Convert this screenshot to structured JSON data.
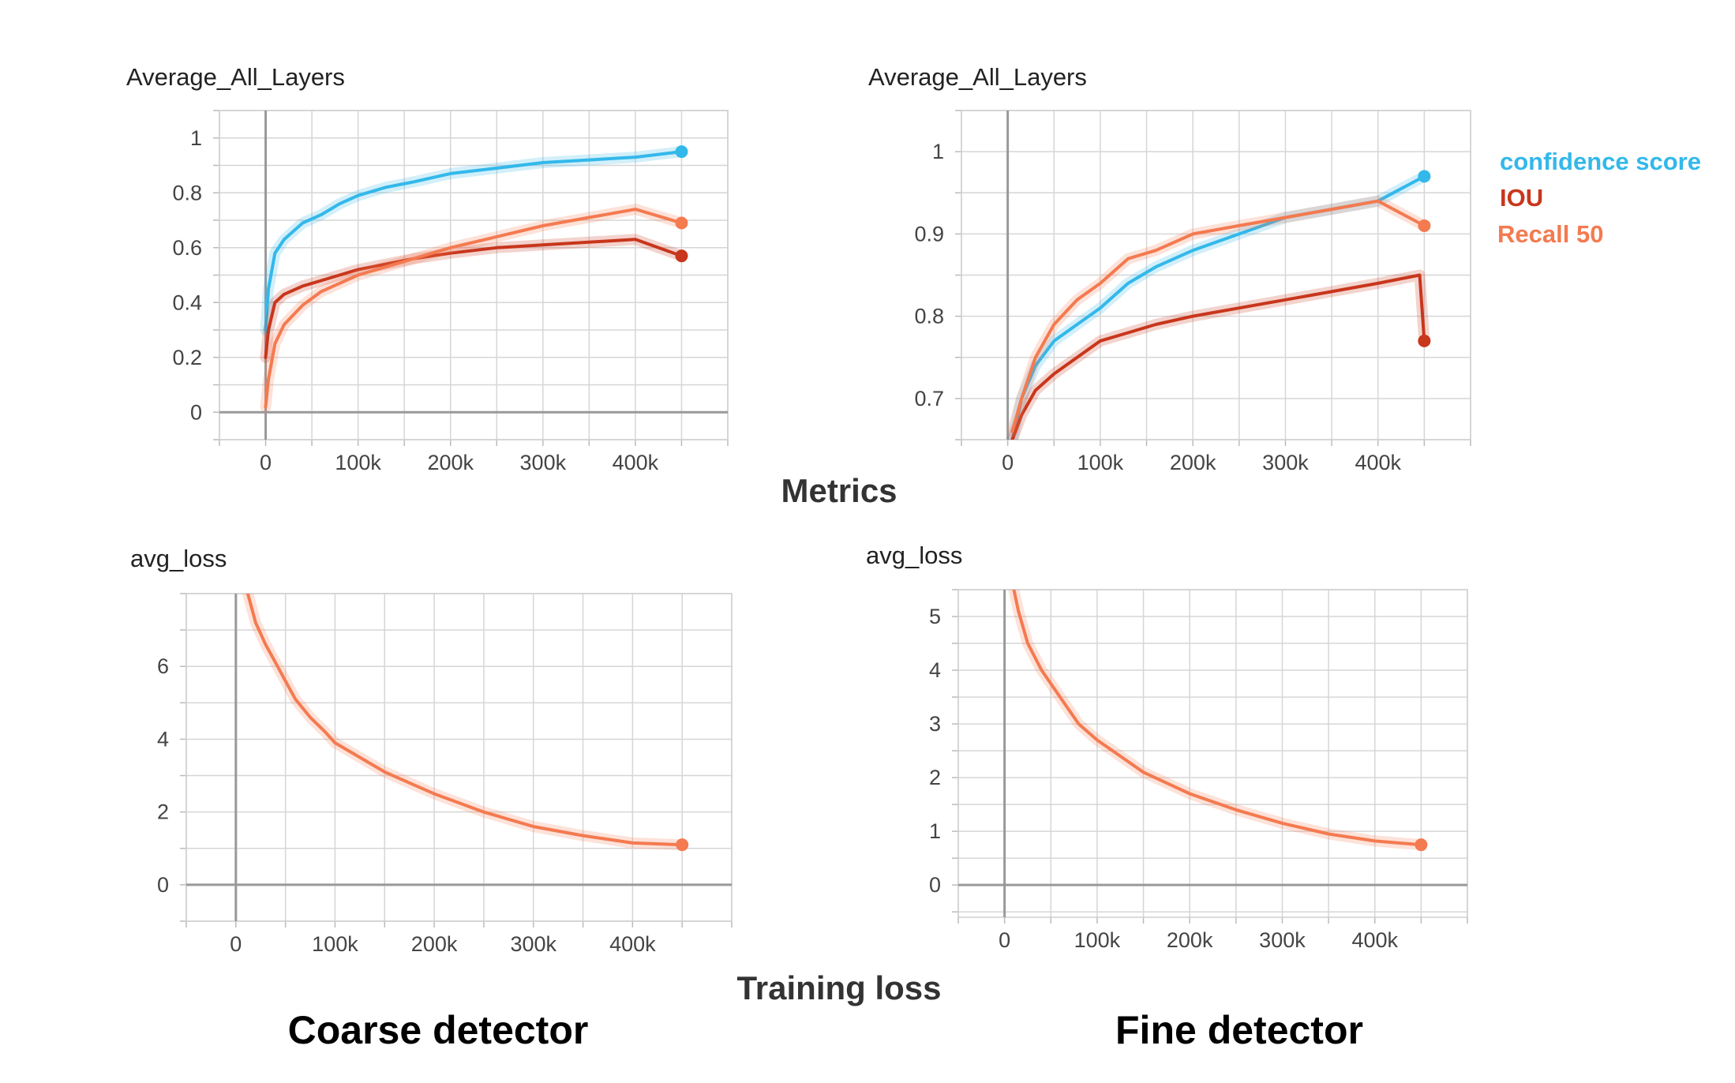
{
  "section_labels": {
    "metrics": "Metrics",
    "training_loss": "Training loss"
  },
  "detector_labels": {
    "coarse": "Coarse detector",
    "fine": "Fine detector"
  },
  "legend": [
    {
      "label": "confidence score",
      "color": "#33b8ea"
    },
    {
      "label": "IOU",
      "color": "#c8361c"
    },
    {
      "label": "Recall 50",
      "color": "#f47a50"
    }
  ],
  "chart_data": [
    {
      "id": "coarse-metrics",
      "type": "line",
      "title": "Average_All_Layers",
      "xlim": [
        -50000,
        500000
      ],
      "ylim": [
        -0.1,
        1.1
      ],
      "xticks": [
        0,
        100000,
        200000,
        300000,
        400000
      ],
      "xtick_labels": [
        "0",
        "100k",
        "200k",
        "300k",
        "400k"
      ],
      "yticks": [
        0,
        0.2,
        0.4,
        0.6,
        0.8,
        1
      ],
      "ytick_labels": [
        "0",
        "0.2",
        "0.4",
        "0.6",
        "0.8",
        "1"
      ],
      "series": [
        {
          "name": "confidence score",
          "color": "#33b8ea",
          "x": [
            0,
            3000,
            10000,
            20000,
            40000,
            60000,
            80000,
            100000,
            130000,
            160000,
            200000,
            250000,
            300000,
            350000,
            400000,
            450000
          ],
          "y": [
            0.3,
            0.45,
            0.58,
            0.63,
            0.69,
            0.72,
            0.76,
            0.79,
            0.82,
            0.84,
            0.87,
            0.89,
            0.91,
            0.92,
            0.93,
            0.95
          ]
        },
        {
          "name": "IOU",
          "color": "#c8361c",
          "x": [
            0,
            3000,
            10000,
            20000,
            40000,
            60000,
            80000,
            100000,
            130000,
            160000,
            200000,
            250000,
            300000,
            350000,
            400000,
            450000
          ],
          "y": [
            0.2,
            0.3,
            0.4,
            0.43,
            0.46,
            0.48,
            0.5,
            0.52,
            0.54,
            0.56,
            0.58,
            0.6,
            0.61,
            0.62,
            0.63,
            0.57
          ]
        },
        {
          "name": "Recall 50",
          "color": "#f47a50",
          "x": [
            0,
            3000,
            10000,
            20000,
            40000,
            60000,
            80000,
            100000,
            130000,
            160000,
            200000,
            250000,
            300000,
            350000,
            400000,
            450000
          ],
          "y": [
            0.02,
            0.12,
            0.25,
            0.32,
            0.39,
            0.44,
            0.47,
            0.5,
            0.53,
            0.56,
            0.6,
            0.64,
            0.68,
            0.71,
            0.74,
            0.69
          ]
        }
      ]
    },
    {
      "id": "fine-metrics",
      "type": "line",
      "title": "Average_All_Layers",
      "xlim": [
        -50000,
        500000
      ],
      "ylim": [
        0.65,
        1.05
      ],
      "xticks": [
        0,
        100000,
        200000,
        300000,
        400000
      ],
      "xtick_labels": [
        "0",
        "100k",
        "200k",
        "300k",
        "400k"
      ],
      "yticks": [
        0.7,
        0.8,
        0.9,
        1
      ],
      "ytick_labels": [
        "0.7",
        "0.8",
        "0.9",
        "1"
      ],
      "series": [
        {
          "name": "confidence score",
          "color": "#33b8ea",
          "x": [
            5000,
            15000,
            30000,
            50000,
            75000,
            100000,
            130000,
            160000,
            200000,
            250000,
            300000,
            350000,
            400000,
            450000
          ],
          "y": [
            0.65,
            0.7,
            0.74,
            0.77,
            0.79,
            0.81,
            0.84,
            0.86,
            0.88,
            0.9,
            0.92,
            0.93,
            0.94,
            0.97
          ]
        },
        {
          "name": "IOU",
          "color": "#c8361c",
          "x": [
            5000,
            15000,
            30000,
            50000,
            75000,
            100000,
            130000,
            160000,
            200000,
            250000,
            300000,
            350000,
            400000,
            445000,
            450000
          ],
          "y": [
            0.65,
            0.68,
            0.71,
            0.73,
            0.75,
            0.77,
            0.78,
            0.79,
            0.8,
            0.81,
            0.82,
            0.83,
            0.84,
            0.85,
            0.77
          ]
        },
        {
          "name": "Recall 50",
          "color": "#f47a50",
          "x": [
            5000,
            15000,
            30000,
            50000,
            75000,
            100000,
            130000,
            160000,
            200000,
            250000,
            300000,
            350000,
            400000,
            450000
          ],
          "y": [
            0.66,
            0.7,
            0.75,
            0.79,
            0.82,
            0.84,
            0.87,
            0.88,
            0.9,
            0.91,
            0.92,
            0.93,
            0.94,
            0.91
          ]
        }
      ]
    },
    {
      "id": "coarse-loss",
      "type": "line",
      "title": "avg_loss",
      "xlim": [
        -50000,
        500000
      ],
      "ylim": [
        -1,
        8
      ],
      "xticks": [
        0,
        100000,
        200000,
        300000,
        400000
      ],
      "xtick_labels": [
        "0",
        "100k",
        "200k",
        "300k",
        "400k"
      ],
      "yticks": [
        0,
        2,
        4,
        6
      ],
      "ytick_labels": [
        "0",
        "2",
        "4",
        "6"
      ],
      "series": [
        {
          "name": "avg_loss",
          "color": "#f47a50",
          "x": [
            12000,
            20000,
            30000,
            40000,
            50000,
            60000,
            75000,
            90000,
            100000,
            125000,
            150000,
            175000,
            200000,
            250000,
            300000,
            350000,
            400000,
            450000
          ],
          "y": [
            8,
            7.2,
            6.6,
            6.1,
            5.6,
            5.1,
            4.6,
            4.2,
            3.9,
            3.5,
            3.1,
            2.8,
            2.5,
            2.0,
            1.6,
            1.35,
            1.15,
            1.1
          ]
        }
      ]
    },
    {
      "id": "fine-loss",
      "type": "line",
      "title": "avg_loss",
      "xlim": [
        -50000,
        500000
      ],
      "ylim": [
        -0.6,
        5.5
      ],
      "xticks": [
        0,
        100000,
        200000,
        300000,
        400000
      ],
      "xtick_labels": [
        "0",
        "100k",
        "200k",
        "300k",
        "400k"
      ],
      "yticks": [
        0,
        1,
        2,
        3,
        4,
        5
      ],
      "ytick_labels": [
        "0",
        "1",
        "2",
        "3",
        "4",
        "5"
      ],
      "series": [
        {
          "name": "avg_loss",
          "color": "#f47a50",
          "x": [
            10000,
            15000,
            25000,
            40000,
            60000,
            80000,
            100000,
            125000,
            150000,
            175000,
            200000,
            250000,
            300000,
            350000,
            400000,
            450000
          ],
          "y": [
            5.5,
            5.1,
            4.5,
            4.0,
            3.5,
            3.0,
            2.7,
            2.4,
            2.1,
            1.9,
            1.7,
            1.4,
            1.15,
            0.95,
            0.82,
            0.75
          ]
        }
      ]
    }
  ]
}
